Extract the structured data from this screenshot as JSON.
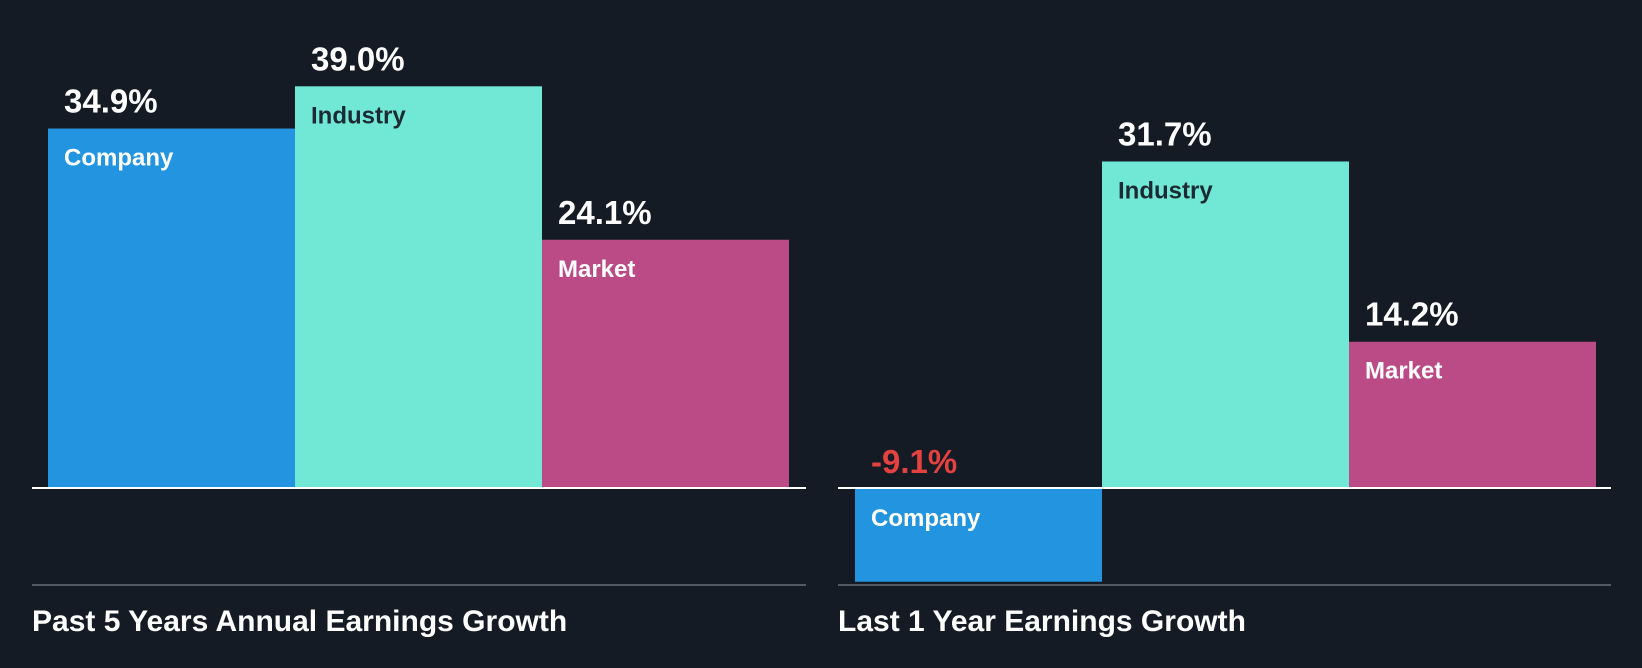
{
  "colors": {
    "background": "#151b24",
    "company": "#2394e0",
    "industry": "#71e7d6",
    "market": "#bb4b87",
    "label_light": "#ffffff",
    "label_dark": "#1c2b33",
    "negative": "#e64141",
    "baseline": "#ffffff",
    "divider": "#525a64"
  },
  "chart_data": [
    {
      "type": "bar",
      "title": "Past 5 Years Annual Earnings Growth",
      "unit": "%",
      "categories": [
        "Company",
        "Industry",
        "Market"
      ],
      "values": [
        34.9,
        39.0,
        24.1
      ],
      "value_labels": [
        "34.9%",
        "39.0%",
        "24.1%"
      ],
      "ylim": [
        -9.1,
        39.0
      ],
      "grid": false,
      "legend": "none"
    },
    {
      "type": "bar",
      "title": "Last 1 Year Earnings Growth",
      "unit": "%",
      "categories": [
        "Company",
        "Industry",
        "Market"
      ],
      "values": [
        -9.1,
        31.7,
        14.2
      ],
      "value_labels": [
        "-9.1%",
        "31.7%",
        "14.2%"
      ],
      "ylim": [
        -9.1,
        39.0
      ],
      "grid": false,
      "legend": "none"
    }
  ]
}
